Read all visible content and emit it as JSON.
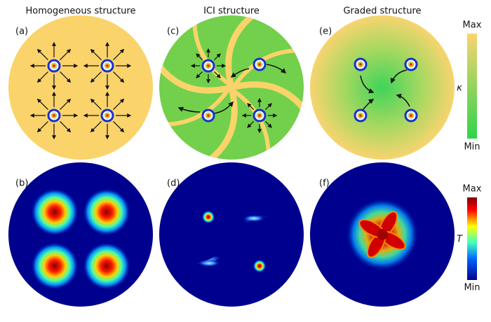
{
  "column_titles": [
    "Homogeneous structure",
    "ICI structure",
    "Graded structure"
  ],
  "panel_labels": [
    "(a)",
    "(b)",
    "(c)",
    "(d)",
    "(e)",
    "(f)"
  ],
  "colorbars": [
    {
      "max": "Max",
      "symbol": "κ",
      "min": "Min"
    },
    {
      "max": "Max",
      "symbol": "T",
      "min": "Min"
    }
  ]
}
